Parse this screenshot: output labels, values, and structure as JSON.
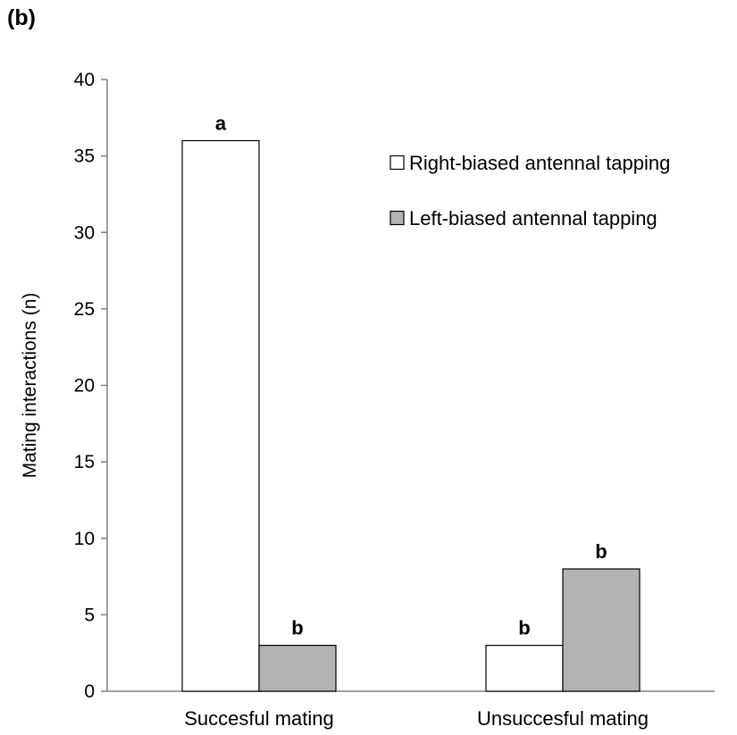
{
  "panel_label": "(b)",
  "chart_data": {
    "type": "bar",
    "categories": [
      "Succesful mating",
      "Unsuccesful mating"
    ],
    "series": [
      {
        "name": "Right-biased antennal tapping",
        "values": [
          36,
          3
        ],
        "color": "#ffffff",
        "significance": [
          "a",
          "b"
        ]
      },
      {
        "name": "Left-biased antennal tapping",
        "values": [
          3,
          8
        ],
        "color": "#b3b3b3",
        "significance": [
          "b",
          "b"
        ]
      }
    ],
    "title": "",
    "xlabel": "",
    "ylabel": "Mating interactions (n)",
    "ylim": [
      0,
      40
    ],
    "yticks": [
      0,
      5,
      10,
      15,
      20,
      25,
      30,
      35,
      40
    ],
    "grid": false,
    "legend_position": "top-right"
  }
}
